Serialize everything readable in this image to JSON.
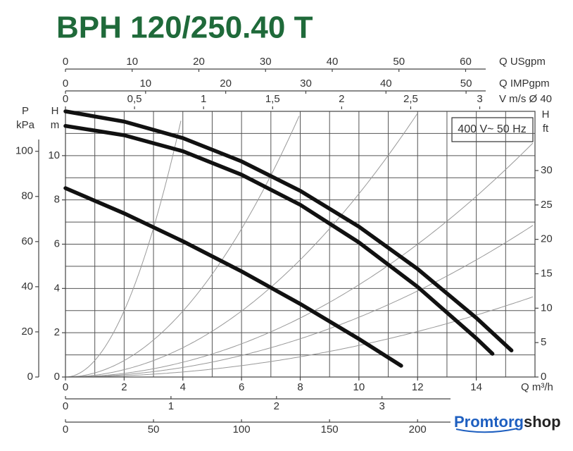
{
  "chart_data": {
    "type": "line",
    "title": "BPH 120/250.40 T",
    "xlabel": "Q m³/h",
    "xlim": [
      0,
      16
    ],
    "xticks": [
      0,
      2,
      4,
      6,
      8,
      10,
      12,
      14
    ],
    "ylabel": [
      "H",
      "m"
    ],
    "ylim": [
      0,
      12
    ],
    "yticks": [
      0,
      2,
      4,
      6,
      8,
      10
    ],
    "y2label": [
      "H",
      "ft"
    ],
    "y2lim": [
      0,
      38.6
    ],
    "y2ticks": [
      0,
      5,
      10,
      15,
      20,
      25,
      30
    ],
    "pressure_axis": {
      "label": [
        "P",
        "kPa"
      ],
      "lim": [
        0,
        117.7
      ],
      "ticks": [
        0,
        20,
        40,
        60,
        80,
        100
      ]
    },
    "top_axes": [
      {
        "label": "Q USgpm",
        "lim": [
          0,
          70.4
        ],
        "ticks": [
          0,
          10,
          20,
          30,
          40,
          50,
          60
        ]
      },
      {
        "label": "Q IMPgpm",
        "lim": [
          0,
          58.6
        ],
        "ticks": [
          0,
          10,
          20,
          30,
          40,
          50
        ]
      },
      {
        "label": "V m/s Ø 40",
        "lim": [
          0,
          3.4
        ],
        "ticks": [
          0,
          {
            "value": 0.5,
            "label": "0,5"
          },
          1,
          {
            "value": 1.5,
            "label": "1,5"
          },
          2,
          {
            "value": 2.5,
            "label": "2,5"
          },
          3
        ]
      }
    ],
    "bottom_axes": [
      {
        "lim": [
          0,
          4.45
        ],
        "ticks": [
          0,
          1,
          2,
          3
        ]
      },
      {
        "lim": [
          0,
          266.7
        ],
        "ticks": [
          0,
          50,
          100,
          150,
          200
        ]
      }
    ],
    "annotation": "400 V~ 50 Hz",
    "grid": true,
    "series": [
      {
        "color": "#111111",
        "x": [
          0,
          2,
          4,
          6,
          8,
          10,
          12,
          14,
          15.2
        ],
        "values": [
          12,
          11.54,
          10.79,
          9.74,
          8.41,
          6.79,
          4.88,
          2.67,
          1.2
        ]
      },
      {
        "color": "#111111",
        "x": [
          0,
          2,
          4,
          6,
          8,
          10,
          12,
          14,
          14.55
        ],
        "values": [
          11.34,
          10.92,
          10.2,
          9.14,
          7.78,
          6.08,
          4.07,
          1.75,
          1.05
        ]
      },
      {
        "color": "#111111",
        "x": [
          0,
          2,
          4,
          6,
          8,
          10,
          11.44
        ],
        "values": [
          8.53,
          7.39,
          6.13,
          4.77,
          3.3,
          1.72,
          0.51
        ]
      }
    ]
  },
  "logo": [
    "Promtorg",
    "shop"
  ]
}
